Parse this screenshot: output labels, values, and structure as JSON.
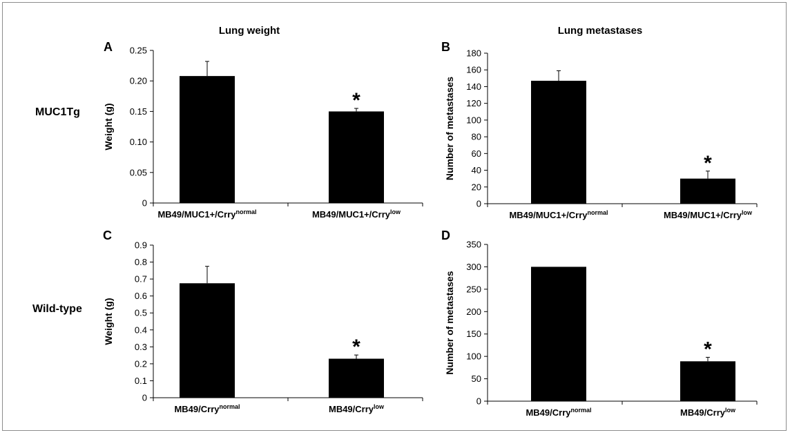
{
  "figure": {
    "column_titles": [
      "Lung weight",
      "Lung metastases"
    ],
    "row_labels": [
      "MUC1Tg",
      "Wild-type"
    ]
  },
  "chart_data": [
    {
      "type": "bar",
      "panel_label": "A",
      "ylabel": "Weight (g)",
      "ylim": [
        0,
        0.25
      ],
      "yticks": [
        0,
        0.05,
        0.1,
        0.15,
        0.2,
        0.25
      ],
      "ytick_labels": [
        "0",
        "0.05",
        "0.10",
        "0.15",
        "0.20",
        "0.25"
      ],
      "categories": [
        {
          "base": "MB49/MUC1+/Crry",
          "sup": "normal"
        },
        {
          "base": "MB49/MUC1+/Crry",
          "sup": "low"
        }
      ],
      "values": [
        0.208,
        0.15
      ],
      "errors": [
        0.024,
        0.005
      ],
      "significance": [
        "",
        "*"
      ]
    },
    {
      "type": "bar",
      "panel_label": "B",
      "ylabel": "Number of metastases",
      "ylim": [
        0,
        180
      ],
      "yticks": [
        0,
        20,
        40,
        60,
        80,
        100,
        120,
        140,
        160,
        180
      ],
      "ytick_labels": [
        "0",
        "20",
        "40",
        "60",
        "80",
        "100",
        "120",
        "140",
        "160",
        "180"
      ],
      "categories": [
        {
          "base": "MB49/MUC1+/Crry",
          "sup": "normal"
        },
        {
          "base": "MB49/MUC1+/Crry",
          "sup": "low"
        }
      ],
      "values": [
        147,
        30
      ],
      "errors": [
        12,
        9
      ],
      "significance": [
        "",
        "*"
      ]
    },
    {
      "type": "bar",
      "panel_label": "C",
      "ylabel": "Weight (g)",
      "ylim": [
        0,
        0.9
      ],
      "yticks": [
        0,
        0.1,
        0.2,
        0.3,
        0.4,
        0.5,
        0.6,
        0.7,
        0.8,
        0.9
      ],
      "ytick_labels": [
        "0",
        "0.1",
        "0.2",
        "0.3",
        "0.4",
        "0.5",
        "0.6",
        "0.7",
        "0.8",
        "0.9"
      ],
      "categories": [
        {
          "base": "MB49/Crry",
          "sup": "normal"
        },
        {
          "base": "MB49/Crry",
          "sup": "low"
        }
      ],
      "values": [
        0.675,
        0.23
      ],
      "errors": [
        0.1,
        0.022
      ],
      "significance": [
        "",
        "*"
      ]
    },
    {
      "type": "bar",
      "panel_label": "D",
      "ylabel": "Number of metastases",
      "ylim": [
        0,
        350
      ],
      "yticks": [
        0,
        50,
        100,
        150,
        200,
        250,
        300,
        350
      ],
      "ytick_labels": [
        "0",
        "50",
        "100",
        "150",
        "200",
        "250",
        "300",
        "350"
      ],
      "categories": [
        {
          "base": "MB49/Crry",
          "sup": "normal"
        },
        {
          "base": "MB49/Crry",
          "sup": "low"
        }
      ],
      "values": [
        300,
        89
      ],
      "errors": [
        0,
        9
      ],
      "significance": [
        "",
        "*"
      ]
    }
  ]
}
